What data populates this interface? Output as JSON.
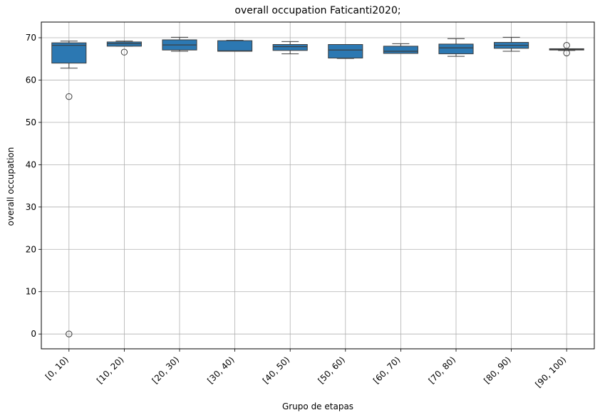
{
  "chart_data": {
    "type": "boxplot",
    "title": "overall occupation Faticanti2020;",
    "xlabel": "Grupo de etapas",
    "ylabel": "overall occupation",
    "ylim": [
      -3.5,
      73.7
    ],
    "yticks": [
      0,
      10,
      20,
      30,
      40,
      50,
      60,
      70
    ],
    "grid": true,
    "box_color": "#2c78b2",
    "categories": [
      "[0, 10)",
      "[10, 20)",
      "[20, 30)",
      "[30, 40)",
      "[40, 50)",
      "[50, 60)",
      "[60, 70)",
      "[70, 80)",
      "[80, 90)",
      "[90, 100)"
    ],
    "boxes": [
      {
        "whisker_low": 62.8,
        "q1": 64.0,
        "median": 68.2,
        "q3": 68.8,
        "whisker_high": 69.2,
        "outliers": [
          56.1,
          0.0
        ]
      },
      {
        "whisker_low": 68.0,
        "q1": 68.0,
        "median": 68.6,
        "q3": 69.0,
        "whisker_high": 69.2,
        "outliers": [
          66.6
        ]
      },
      {
        "whisker_low": 66.8,
        "q1": 67.1,
        "median": 68.3,
        "q3": 69.5,
        "whisker_high": 70.1,
        "outliers": []
      },
      {
        "whisker_low": 66.8,
        "q1": 66.8,
        "median": 66.9,
        "q3": 69.3,
        "whisker_high": 69.4,
        "outliers": []
      },
      {
        "whisker_low": 66.2,
        "q1": 67.0,
        "median": 67.9,
        "q3": 68.4,
        "whisker_high": 69.1,
        "outliers": []
      },
      {
        "whisker_low": 65.1,
        "q1": 65.2,
        "median": 67.1,
        "q3": 68.4,
        "whisker_high": 68.4,
        "outliers": []
      },
      {
        "whisker_low": 66.3,
        "q1": 66.3,
        "median": 66.8,
        "q3": 68.0,
        "whisker_high": 68.6,
        "outliers": []
      },
      {
        "whisker_low": 65.6,
        "q1": 66.2,
        "median": 67.6,
        "q3": 68.5,
        "whisker_high": 69.8,
        "outliers": []
      },
      {
        "whisker_low": 66.8,
        "q1": 67.5,
        "median": 68.2,
        "q3": 68.9,
        "whisker_high": 70.1,
        "outliers": []
      },
      {
        "whisker_low": 67.0,
        "q1": 67.1,
        "median": 67.2,
        "q3": 67.4,
        "whisker_high": 67.4,
        "outliers": [
          68.2,
          66.4
        ]
      }
    ]
  }
}
